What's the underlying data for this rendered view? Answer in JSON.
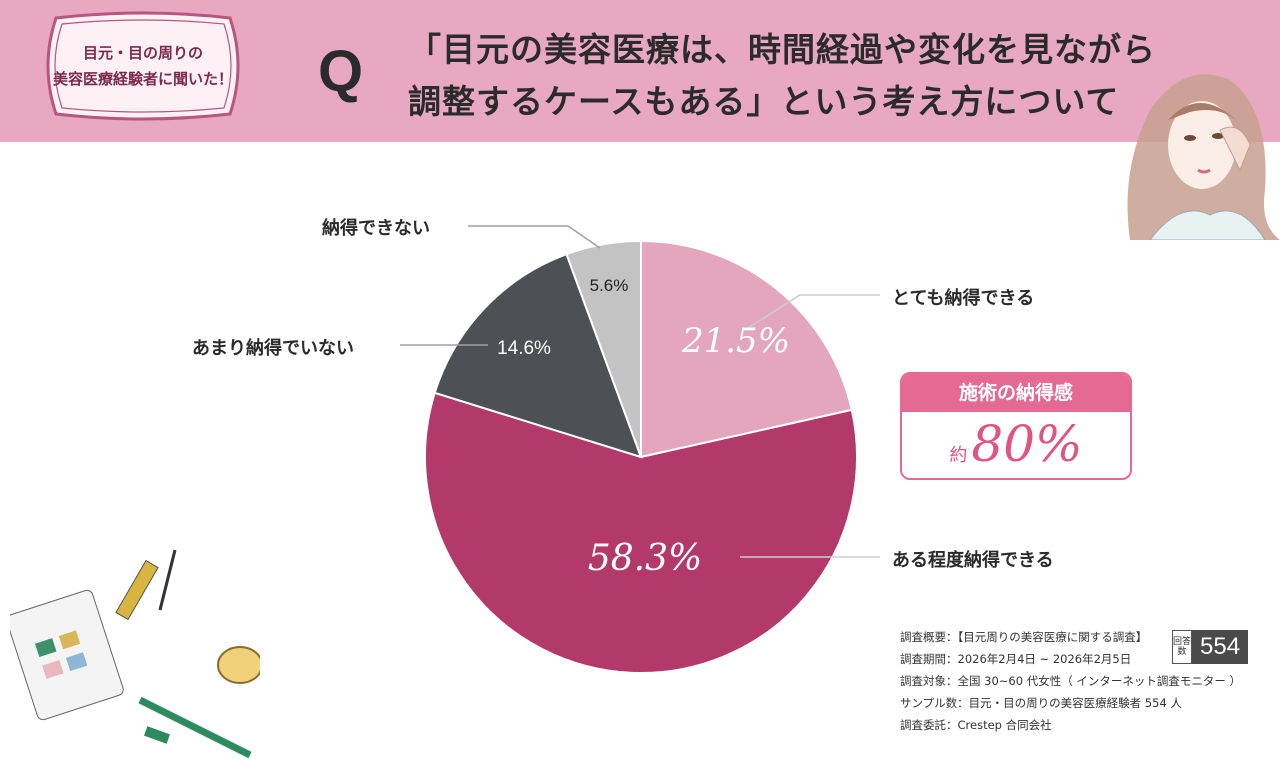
{
  "header": {
    "badge_line1": "目元・目の周りの",
    "badge_line2": "美容医療経験者に聞いた！",
    "q_mark": "Q",
    "title_line1": "「目元の美容医療は、時間経過や変化を見ながら",
    "title_line2": "調整するケースもある」という考え方について"
  },
  "chart_data": {
    "type": "pie",
    "title": "「目元の美容医療は、時間経過や変化を見ながら調整するケースもある」という考え方について",
    "start_angle_deg": 0,
    "direction": "clockwise",
    "slices": [
      {
        "label": "とても納得できる",
        "value": 21.5,
        "display": "21.5%",
        "color": "#e3a6bd"
      },
      {
        "label": "ある程度納得できる",
        "value": 58.3,
        "display": "58.3%",
        "color": "#b2396a"
      },
      {
        "label": "あまり納得でいない",
        "value": 14.6,
        "display": "14.6%",
        "color": "#4d5156"
      },
      {
        "label": "納得できない",
        "value": 5.6,
        "display": "5.6%",
        "color": "#c3c3c3"
      }
    ]
  },
  "stat": {
    "heading": "施術の納得感",
    "prefix": "約",
    "value": "80%"
  },
  "survey": {
    "line1": "調査概要：【目元周りの美容医療に関する調査】",
    "line2": "調査期間：2026年2月4日 ~ 2026年2月5日",
    "line3": "調査対象：全国 30~60 代女性（ インターネット調査モニター ）",
    "line4": "サンプル数：目元・目の周りの美容医療経験者 554 人",
    "line5": "調査委託：Crestep 合同会社",
    "respondents_label": "回答数",
    "respondents": "554"
  },
  "colors": {
    "header_bg": "#e9a8c1",
    "accent": "#e56a93"
  }
}
